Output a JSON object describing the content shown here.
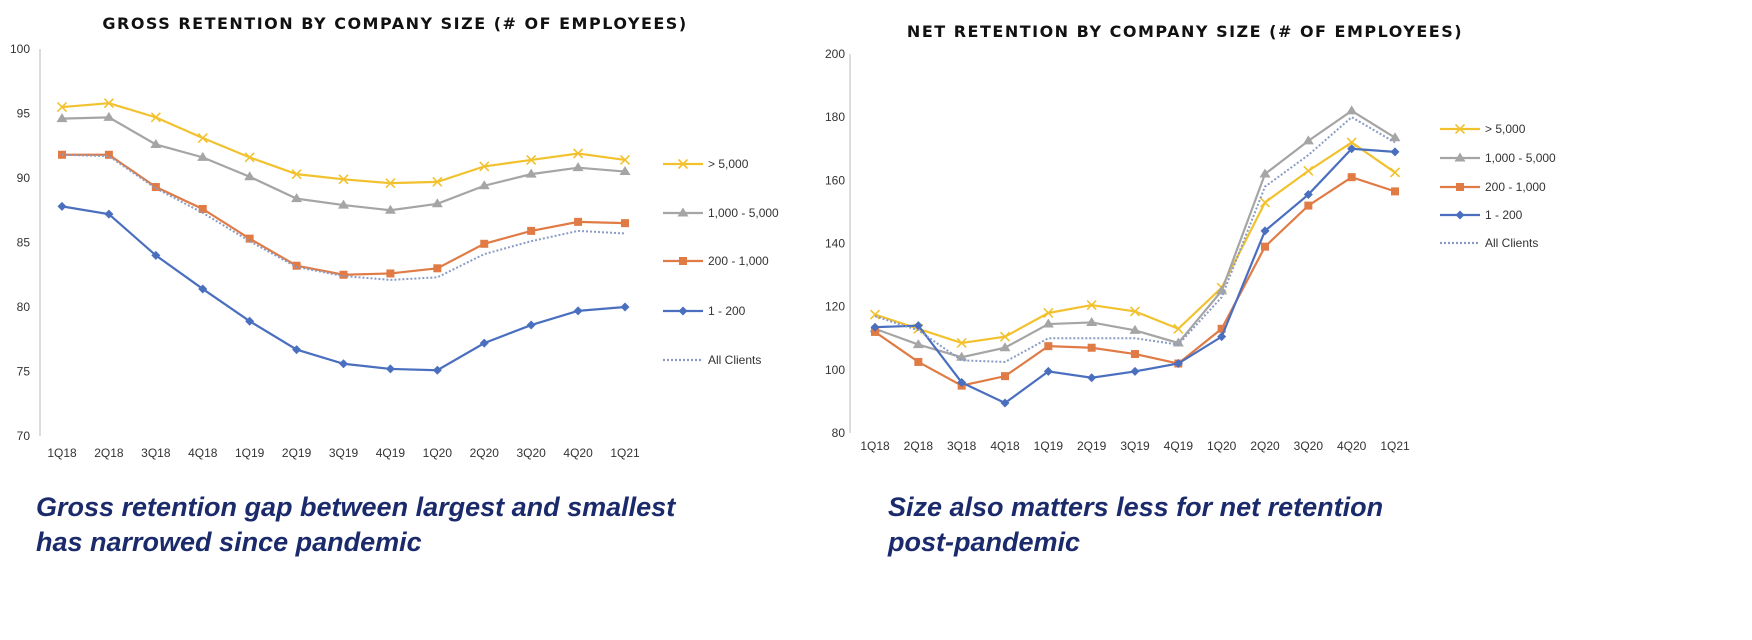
{
  "chart_data": [
    {
      "type": "line",
      "title": "GROSS RETENTION BY COMPANY SIZE (# OF EMPLOYEES)",
      "xlabel": "",
      "ylabel": "",
      "ylim": [
        70,
        100
      ],
      "yticks": [
        70,
        75,
        80,
        85,
        90,
        95,
        100
      ],
      "categories": [
        "1Q18",
        "2Q18",
        "3Q18",
        "4Q18",
        "1Q19",
        "2Q19",
        "3Q19",
        "4Q19",
        "1Q20",
        "2Q20",
        "3Q20",
        "4Q20",
        "1Q21"
      ],
      "legend_position": "right",
      "grid": false,
      "series": [
        {
          "name": "> 5,000",
          "color": "#f2c12e",
          "marker": "x",
          "values": [
            95.5,
            95.8,
            94.7,
            93.1,
            91.6,
            90.3,
            89.9,
            89.6,
            89.7,
            90.9,
            91.4,
            91.9,
            91.4
          ]
        },
        {
          "name": "1,000 - 5,000",
          "color": "#a5a5a5",
          "marker": "triangle",
          "values": [
            94.6,
            94.7,
            92.6,
            91.6,
            90.1,
            88.4,
            87.9,
            87.5,
            88.0,
            89.4,
            90.3,
            90.8,
            90.5
          ]
        },
        {
          "name": "200 - 1,000",
          "color": "#e07b45",
          "marker": "square",
          "values": [
            91.8,
            91.8,
            89.3,
            87.6,
            85.3,
            83.2,
            82.5,
            82.6,
            83.0,
            84.9,
            85.9,
            86.6,
            86.5
          ]
        },
        {
          "name": "1 - 200",
          "color": "#4a6fbf",
          "marker": "diamond",
          "values": [
            87.8,
            87.2,
            84.0,
            81.4,
            78.9,
            76.7,
            75.6,
            75.2,
            75.1,
            77.2,
            78.6,
            79.7,
            80.0
          ]
        },
        {
          "name": "All Clients",
          "color": "#8a9bc4",
          "marker": "dotted",
          "values": [
            91.8,
            91.7,
            89.2,
            87.3,
            85.1,
            83.1,
            82.4,
            82.1,
            82.3,
            84.1,
            85.1,
            85.9,
            85.7
          ]
        }
      ]
    },
    {
      "type": "line",
      "title": "NET RETENTION BY COMPANY SIZE (# OF EMPLOYEES)",
      "xlabel": "",
      "ylabel": "",
      "ylim": [
        80,
        200
      ],
      "yticks": [
        80,
        100,
        120,
        140,
        160,
        180,
        200
      ],
      "categories": [
        "1Q18",
        "2Q18",
        "3Q18",
        "4Q18",
        "1Q19",
        "2Q19",
        "3Q19",
        "4Q19",
        "1Q20",
        "2Q20",
        "3Q20",
        "4Q20",
        "1Q21"
      ],
      "legend_position": "right",
      "grid": false,
      "series": [
        {
          "name": "> 5,000",
          "color": "#f2c12e",
          "marker": "x",
          "values": [
            117.5,
            113,
            108.5,
            110.5,
            118,
            120.5,
            118.5,
            113,
            126,
            153,
            163,
            172,
            162.5
          ]
        },
        {
          "name": "1,000 - 5,000",
          "color": "#a5a5a5",
          "marker": "triangle",
          "values": [
            113,
            108,
            104,
            107,
            114.5,
            115,
            112.5,
            108.5,
            125,
            162,
            172.5,
            182,
            173.5
          ]
        },
        {
          "name": "200 - 1,000",
          "color": "#e07b45",
          "marker": "square",
          "values": [
            112,
            102.5,
            95,
            98,
            107.5,
            107,
            105,
            102,
            113,
            139,
            152,
            161,
            156.5
          ]
        },
        {
          "name": "1 - 200",
          "color": "#4a6fbf",
          "marker": "diamond",
          "values": [
            113.5,
            114,
            96,
            89.5,
            99.5,
            97.5,
            99.5,
            102,
            110.5,
            144,
            155.5,
            170,
            169
          ]
        },
        {
          "name": "All Clients",
          "color": "#8a9bc4",
          "marker": "dotted",
          "values": [
            117,
            112.5,
            103,
            102.5,
            110,
            110,
            110,
            108,
            123,
            158,
            168,
            180,
            172
          ]
        }
      ]
    }
  ],
  "captions": {
    "left": [
      "Gross retention gap between largest and smallest",
      "has narrowed since pandemic"
    ],
    "right": [
      "Size also matters less for net retention",
      "post-pandemic"
    ]
  }
}
